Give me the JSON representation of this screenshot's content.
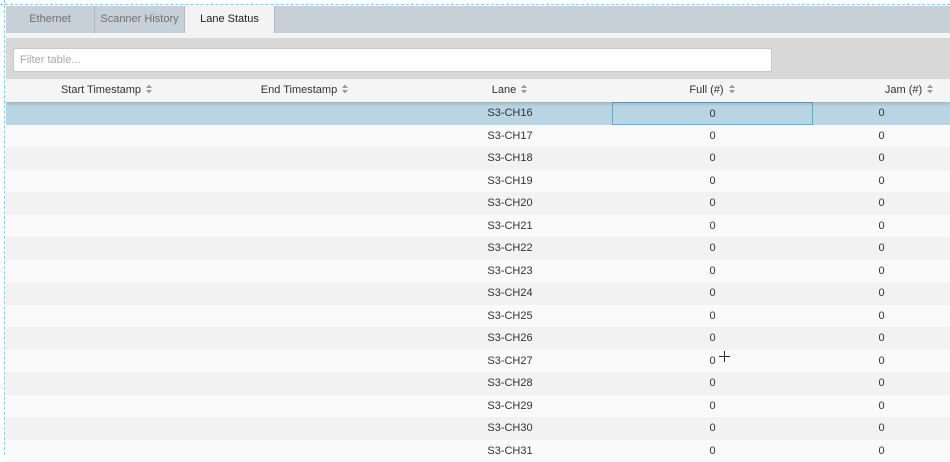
{
  "tabs": [
    {
      "label": "Ethernet",
      "active": false
    },
    {
      "label": "Scanner History",
      "active": false
    },
    {
      "label": "Lane Status",
      "active": true
    }
  ],
  "filter": {
    "placeholder": "Filter table...",
    "value": ""
  },
  "columns": [
    "Start Timestamp",
    "End Timestamp",
    "Lane",
    "Full (#)",
    "Jam (#)"
  ],
  "rows": [
    {
      "start": "",
      "end": "",
      "lane": "S3-CH16",
      "full": "0",
      "jam": "0",
      "selected": true
    },
    {
      "start": "",
      "end": "",
      "lane": "S3-CH17",
      "full": "0",
      "jam": "0"
    },
    {
      "start": "",
      "end": "",
      "lane": "S3-CH18",
      "full": "0",
      "jam": "0"
    },
    {
      "start": "",
      "end": "",
      "lane": "S3-CH19",
      "full": "0",
      "jam": "0"
    },
    {
      "start": "",
      "end": "",
      "lane": "S3-CH20",
      "full": "0",
      "jam": "0"
    },
    {
      "start": "",
      "end": "",
      "lane": "S3-CH21",
      "full": "0",
      "jam": "0"
    },
    {
      "start": "",
      "end": "",
      "lane": "S3-CH22",
      "full": "0",
      "jam": "0"
    },
    {
      "start": "",
      "end": "",
      "lane": "S3-CH23",
      "full": "0",
      "jam": "0"
    },
    {
      "start": "",
      "end": "",
      "lane": "S3-CH24",
      "full": "0",
      "jam": "0"
    },
    {
      "start": "",
      "end": "",
      "lane": "S3-CH25",
      "full": "0",
      "jam": "0"
    },
    {
      "start": "",
      "end": "",
      "lane": "S3-CH26",
      "full": "0",
      "jam": "0"
    },
    {
      "start": "",
      "end": "",
      "lane": "S3-CH27",
      "full": "0",
      "jam": "0"
    },
    {
      "start": "",
      "end": "",
      "lane": "S3-CH28",
      "full": "0",
      "jam": "0"
    },
    {
      "start": "",
      "end": "",
      "lane": "S3-CH29",
      "full": "0",
      "jam": "0"
    },
    {
      "start": "",
      "end": "",
      "lane": "S3-CH30",
      "full": "0",
      "jam": "0"
    },
    {
      "start": "",
      "end": "",
      "lane": "S3-CH31",
      "full": "0",
      "jam": "0"
    }
  ],
  "colors": {
    "selected_row": "#b9d5e3",
    "tab_bar": "#c7d0d6",
    "active_tab": "#f3f3f3"
  }
}
